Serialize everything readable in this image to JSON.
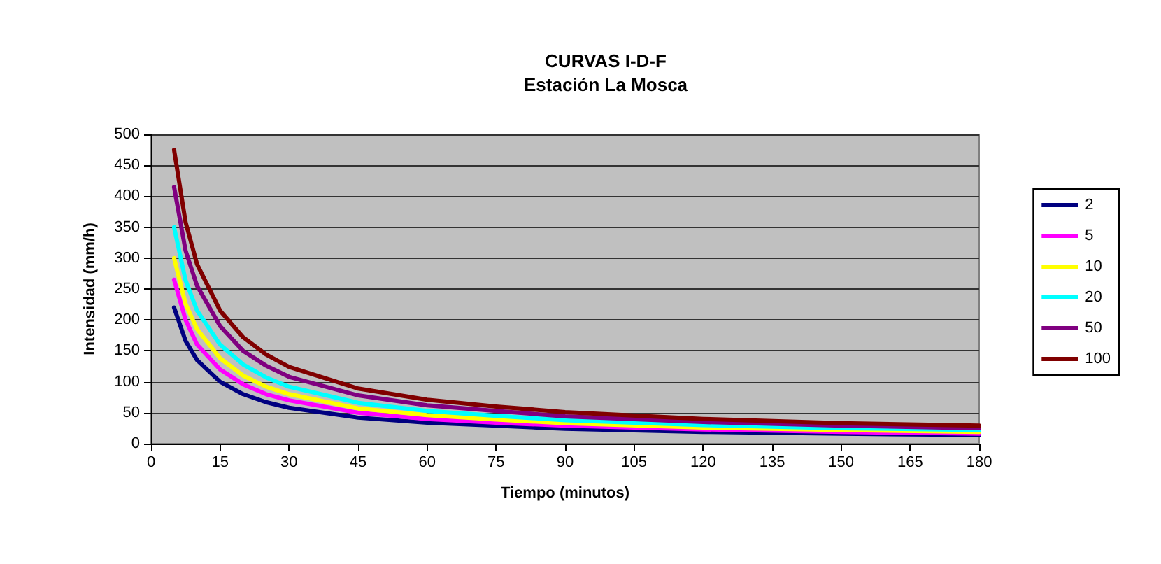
{
  "chart_data": {
    "type": "line",
    "title": "CURVAS I-D-F\nEstación La Mosca",
    "xlabel": "Tiempo (minutos)",
    "ylabel": "Intensidad (mm/h)",
    "x": [
      5,
      7.5,
      10,
      15,
      20,
      25,
      30,
      45,
      60,
      75,
      90,
      120,
      150,
      180
    ],
    "series": [
      {
        "name": "2",
        "color": "#000080",
        "values": [
          220,
          166,
          135,
          100,
          80,
          67,
          58,
          42,
          34,
          29,
          24,
          19,
          16,
          14
        ]
      },
      {
        "name": "5",
        "color": "#ff00ff",
        "values": [
          265,
          200,
          160,
          120,
          96,
          80,
          70,
          50,
          40,
          34,
          29,
          23,
          19,
          16
        ]
      },
      {
        "name": "10",
        "color": "#ffff00",
        "values": [
          300,
          226,
          185,
          138,
          110,
          92,
          80,
          57,
          46,
          39,
          33,
          26,
          22,
          19
        ]
      },
      {
        "name": "20",
        "color": "#00ffff",
        "values": [
          350,
          264,
          215,
          160,
          128,
          107,
          92,
          66,
          53,
          45,
          38,
          30,
          25,
          22
        ]
      },
      {
        "name": "50",
        "color": "#800080",
        "values": [
          415,
          312,
          255,
          190,
          150,
          126,
          108,
          78,
          62,
          53,
          44,
          35,
          29,
          25
        ]
      },
      {
        "name": "100",
        "color": "#800000",
        "values": [
          475,
          358,
          290,
          215,
          172,
          144,
          124,
          89,
          71,
          60,
          51,
          40,
          33,
          29
        ]
      }
    ],
    "xlim": [
      0,
      180
    ],
    "xticks": [
      0,
      15,
      30,
      45,
      60,
      75,
      90,
      105,
      120,
      135,
      150,
      165,
      180
    ],
    "ylim": [
      0,
      500
    ],
    "yticks": [
      0,
      50,
      100,
      150,
      200,
      250,
      300,
      350,
      400,
      450,
      500
    ],
    "grid": "y",
    "legend": "right",
    "marker": "none",
    "line_style": "solid"
  }
}
